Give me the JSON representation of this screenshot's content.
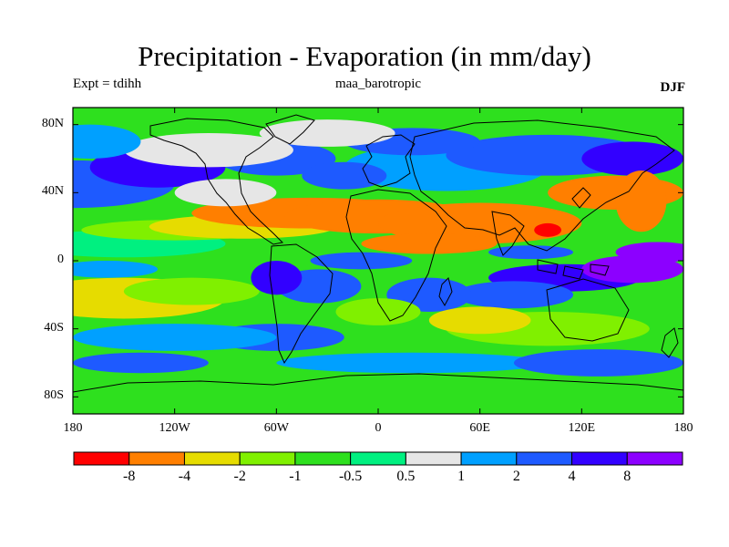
{
  "header": {
    "title": "Precipitation - Evaporation (in mm/day)",
    "experiment_label": "Expt = tdihh",
    "run_label": "maa_barotropic",
    "season_label": "DJF"
  },
  "map": {
    "projection": "cylindrical-equidistant",
    "lon_range": [
      -180,
      180
    ],
    "lat_range": [
      -90,
      90
    ],
    "lat_ticks": [
      {
        "value": 80,
        "label": "80N"
      },
      {
        "value": 40,
        "label": "40N"
      },
      {
        "value": 0,
        "label": "0"
      },
      {
        "value": -40,
        "label": "40S"
      },
      {
        "value": -80,
        "label": "80S"
      }
    ],
    "lon_ticks": [
      {
        "value": -180,
        "label": "180"
      },
      {
        "value": -120,
        "label": "120W"
      },
      {
        "value": -60,
        "label": "60W"
      },
      {
        "value": 0,
        "label": "0"
      },
      {
        "value": 60,
        "label": "60E"
      },
      {
        "value": 120,
        "label": "120E"
      },
      {
        "value": 180,
        "label": "180"
      }
    ],
    "coastline_color": "#000000"
  },
  "legend": {
    "colors": [
      "#ff0000",
      "#ff7f00",
      "#e6dc00",
      "#80f000",
      "#2ee01e",
      "#00f080",
      "#e6e6e6",
      "#00a0ff",
      "#1e5aff",
      "#3200ff",
      "#8c00ff"
    ],
    "labels": [
      "-8",
      "-4",
      "-2",
      "-1",
      "-0.5",
      "0.5",
      "1",
      "2",
      "4",
      "8"
    ]
  }
}
